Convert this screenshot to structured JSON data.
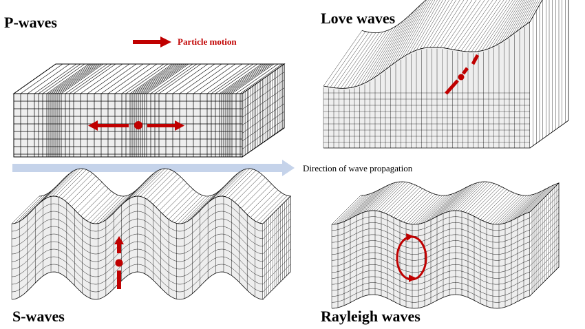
{
  "panels": {
    "p_waves": {
      "title": "P-waves"
    },
    "s_waves": {
      "title": "S-waves"
    },
    "love_waves": {
      "title": "Love waves"
    },
    "rayleigh_waves": {
      "title": "Rayleigh waves"
    }
  },
  "legend": {
    "particle_motion_label": "Particle motion"
  },
  "propagation": {
    "label": "Direction of wave propagation"
  },
  "colors": {
    "particle_motion": "#c00000",
    "propagation_arrow": "#c5d3ea",
    "block_face": "#eeeeee",
    "grid_line": "#000000"
  }
}
